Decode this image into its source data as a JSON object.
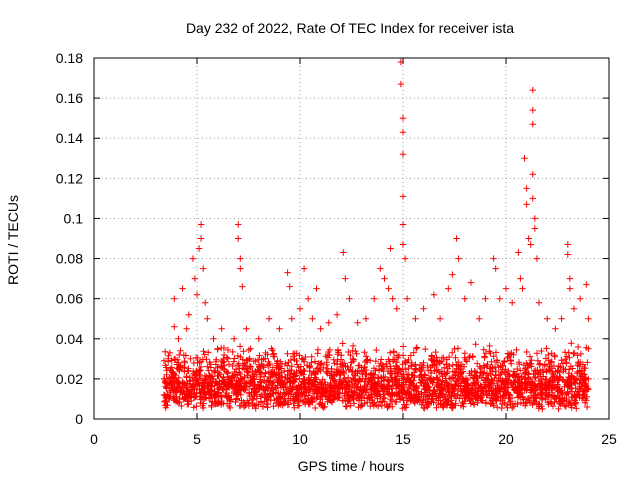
{
  "chart_data": {
    "type": "scatter",
    "title": "Day 232 of 2022, Rate Of TEC Index for receiver ista",
    "xlabel": "GPS time / hours",
    "ylabel": "ROTI / TECUs",
    "xlim": [
      0,
      25
    ],
    "ylim": [
      0,
      0.18
    ],
    "x_ticks": [
      0,
      5,
      10,
      15,
      20,
      25
    ],
    "y_ticks": [
      0,
      0.02,
      0.04,
      0.06,
      0.08,
      0.1,
      0.12,
      0.14,
      0.16,
      0.18
    ],
    "x_tick_labels": [
      "0",
      "5",
      "10",
      "15",
      "20",
      "25"
    ],
    "y_tick_labels": [
      "0",
      "0.02",
      "0.04",
      "0.06",
      "0.08",
      "0.1",
      "0.12",
      "0.14",
      "0.16",
      "0.18"
    ],
    "grid": true,
    "marker": "plus",
    "color": "#ff0000",
    "series": [
      {
        "name": "ROTI",
        "points": [
          [
            3.4,
            0.012
          ],
          [
            3.4,
            0.02
          ],
          [
            3.4,
            0.029
          ],
          [
            3.6,
            0.03
          ],
          [
            3.7,
            0.025
          ],
          [
            3.9,
            0.046
          ],
          [
            3.9,
            0.06
          ],
          [
            4.1,
            0.04
          ],
          [
            4.3,
            0.065
          ],
          [
            4.5,
            0.045
          ],
          [
            4.6,
            0.052
          ],
          [
            4.8,
            0.08
          ],
          [
            4.9,
            0.07
          ],
          [
            5.0,
            0.062
          ],
          [
            5.1,
            0.085
          ],
          [
            5.2,
            0.097
          ],
          [
            5.2,
            0.09
          ],
          [
            5.3,
            0.075
          ],
          [
            5.4,
            0.058
          ],
          [
            5.5,
            0.05
          ],
          [
            5.8,
            0.04
          ],
          [
            6.0,
            0.035
          ],
          [
            6.2,
            0.045
          ],
          [
            6.5,
            0.03
          ],
          [
            6.8,
            0.04
          ],
          [
            7.0,
            0.097
          ],
          [
            7.0,
            0.09
          ],
          [
            7.1,
            0.08
          ],
          [
            7.1,
            0.075
          ],
          [
            7.2,
            0.066
          ],
          [
            7.4,
            0.045
          ],
          [
            7.6,
            0.035
          ],
          [
            8.0,
            0.04
          ],
          [
            8.5,
            0.05
          ],
          [
            9.0,
            0.045
          ],
          [
            9.4,
            0.073
          ],
          [
            9.5,
            0.066
          ],
          [
            9.6,
            0.05
          ],
          [
            10.0,
            0.055
          ],
          [
            10.2,
            0.075
          ],
          [
            10.4,
            0.06
          ],
          [
            10.6,
            0.05
          ],
          [
            10.8,
            0.065
          ],
          [
            11.0,
            0.045
          ],
          [
            11.4,
            0.048
          ],
          [
            11.8,
            0.052
          ],
          [
            12.1,
            0.083
          ],
          [
            12.2,
            0.07
          ],
          [
            12.4,
            0.06
          ],
          [
            12.8,
            0.048
          ],
          [
            13.2,
            0.05
          ],
          [
            13.6,
            0.06
          ],
          [
            13.9,
            0.075
          ],
          [
            14.1,
            0.07
          ],
          [
            14.3,
            0.065
          ],
          [
            14.4,
            0.085
          ],
          [
            14.5,
            0.06
          ],
          [
            14.7,
            0.055
          ],
          [
            14.9,
            0.178
          ],
          [
            14.9,
            0.167
          ],
          [
            15.0,
            0.15
          ],
          [
            15.0,
            0.143
          ],
          [
            15.0,
            0.132
          ],
          [
            15.0,
            0.111
          ],
          [
            15.0,
            0.097
          ],
          [
            15.0,
            0.087
          ],
          [
            15.1,
            0.08
          ],
          [
            15.2,
            0.06
          ],
          [
            15.6,
            0.05
          ],
          [
            16.0,
            0.055
          ],
          [
            16.5,
            0.062
          ],
          [
            16.8,
            0.05
          ],
          [
            17.2,
            0.065
          ],
          [
            17.4,
            0.072
          ],
          [
            17.6,
            0.09
          ],
          [
            17.7,
            0.08
          ],
          [
            18.0,
            0.06
          ],
          [
            18.3,
            0.068
          ],
          [
            18.7,
            0.05
          ],
          [
            19.0,
            0.06
          ],
          [
            19.4,
            0.08
          ],
          [
            19.5,
            0.075
          ],
          [
            19.7,
            0.06
          ],
          [
            20.0,
            0.065
          ],
          [
            20.3,
            0.058
          ],
          [
            20.6,
            0.083
          ],
          [
            20.7,
            0.07
          ],
          [
            20.8,
            0.065
          ],
          [
            20.9,
            0.13
          ],
          [
            21.0,
            0.115
          ],
          [
            21.0,
            0.107
          ],
          [
            21.1,
            0.09
          ],
          [
            21.2,
            0.087
          ],
          [
            21.3,
            0.164
          ],
          [
            21.3,
            0.154
          ],
          [
            21.3,
            0.147
          ],
          [
            21.3,
            0.122
          ],
          [
            21.3,
            0.11
          ],
          [
            21.4,
            0.1
          ],
          [
            21.4,
            0.095
          ],
          [
            21.5,
            0.08
          ],
          [
            21.6,
            0.058
          ],
          [
            22.0,
            0.05
          ],
          [
            22.4,
            0.045
          ],
          [
            22.7,
            0.05
          ],
          [
            23.0,
            0.087
          ],
          [
            23.0,
            0.082
          ],
          [
            23.1,
            0.07
          ],
          [
            23.1,
            0.065
          ],
          [
            23.3,
            0.055
          ],
          [
            23.6,
            0.06
          ],
          [
            23.9,
            0.067
          ],
          [
            24.0,
            0.05
          ],
          [
            24.0,
            0.035
          ],
          [
            24.0,
            0.02
          ]
        ]
      }
    ],
    "dense_band": {
      "x_start": 3.4,
      "x_end": 24.0,
      "y_floor": 0.005,
      "y_typical_high": 0.035
    }
  }
}
